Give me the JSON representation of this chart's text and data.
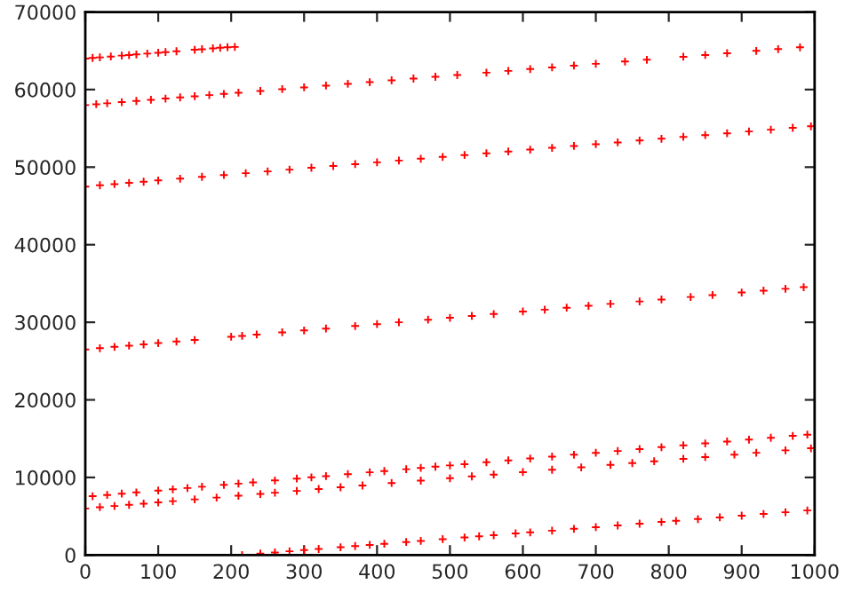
{
  "chart_data": {
    "type": "scatter",
    "marker": "cross",
    "grid": false,
    "xlim": [
      0,
      1000
    ],
    "xticks": [
      0,
      100,
      200,
      300,
      400,
      500,
      600,
      700,
      800,
      900,
      1000
    ],
    "ylim": [
      0,
      70000
    ],
    "yticks": [
      0,
      10000,
      20000,
      30000,
      40000,
      50000,
      60000,
      70000
    ],
    "series": [
      {
        "color": "#ff0000",
        "x": [
          0,
          10,
          20,
          35,
          50,
          60,
          70,
          85,
          100,
          110,
          125,
          150,
          160,
          175,
          185,
          195,
          205,
          0,
          15,
          30,
          50,
          70,
          90,
          110,
          130,
          150,
          170,
          190,
          210,
          240,
          270,
          300,
          330,
          360,
          390,
          420,
          450,
          480,
          510,
          550,
          580,
          610,
          640,
          670,
          700,
          740,
          770,
          820,
          850,
          880,
          920,
          950,
          980,
          0,
          20,
          40,
          60,
          80,
          100,
          130,
          160,
          190,
          220,
          250,
          280,
          310,
          340,
          370,
          400,
          430,
          460,
          490,
          520,
          550,
          580,
          610,
          640,
          670,
          700,
          730,
          760,
          790,
          820,
          850,
          880,
          910,
          940,
          970,
          995,
          0,
          20,
          40,
          60,
          80,
          100,
          125,
          150,
          200,
          215,
          235,
          270,
          300,
          330,
          370,
          400,
          430,
          470,
          500,
          530,
          560,
          600,
          630,
          660,
          690,
          720,
          760,
          790,
          830,
          860,
          900,
          930,
          960,
          985,
          10,
          30,
          50,
          70,
          100,
          120,
          140,
          160,
          190,
          210,
          230,
          260,
          290,
          310,
          330,
          360,
          390,
          410,
          440,
          460,
          480,
          500,
          520,
          550,
          580,
          610,
          640,
          670,
          700,
          730,
          760,
          790,
          820,
          850,
          880,
          910,
          940,
          970,
          990,
          0,
          20,
          40,
          60,
          80,
          100,
          120,
          150,
          180,
          210,
          240,
          260,
          290,
          320,
          350,
          380,
          420,
          460,
          500,
          530,
          560,
          600,
          640,
          680,
          720,
          750,
          780,
          820,
          850,
          890,
          920,
          960,
          995,
          215,
          240,
          260,
          280,
          300,
          320,
          350,
          370,
          390,
          410,
          440,
          460,
          490,
          520,
          540,
          560,
          590,
          610,
          640,
          670,
          700,
          730,
          760,
          790,
          810,
          840,
          870,
          900,
          930,
          960,
          990
        ],
        "values": [
          64000,
          64080,
          64150,
          64260,
          64380,
          64450,
          64530,
          64640,
          64750,
          64830,
          64940,
          65130,
          65200,
          65310,
          65390,
          65460,
          65500,
          58000,
          58110,
          58230,
          58380,
          58530,
          58680,
          58840,
          58990,
          59140,
          59290,
          59440,
          59600,
          59820,
          60050,
          60280,
          60510,
          60740,
          60960,
          61190,
          61420,
          61650,
          61880,
          62180,
          62410,
          62640,
          62860,
          63090,
          63320,
          63620,
          63850,
          64230,
          64460,
          64690,
          64990,
          65220,
          65450,
          47500,
          47660,
          47810,
          47970,
          48120,
          48280,
          48510,
          48750,
          48980,
          49220,
          49450,
          49680,
          49920,
          50150,
          50390,
          50620,
          50850,
          51090,
          51320,
          51560,
          51790,
          52020,
          52260,
          52490,
          52730,
          52960,
          53190,
          53430,
          53660,
          53900,
          54130,
          54360,
          54600,
          54830,
          55070,
          55260,
          26500,
          26660,
          26830,
          26990,
          27150,
          27320,
          27520,
          27720,
          28130,
          28250,
          28420,
          28700,
          28950,
          29190,
          29520,
          29760,
          30000,
          30330,
          30580,
          30820,
          31060,
          31390,
          31630,
          31880,
          32120,
          32370,
          32690,
          32940,
          33260,
          33510,
          33840,
          34080,
          34320,
          34530,
          7580,
          7740,
          7910,
          8070,
          8310,
          8470,
          8630,
          8800,
          9040,
          9200,
          9360,
          9610,
          9850,
          10010,
          10170,
          10420,
          10660,
          10820,
          11060,
          11230,
          11390,
          11550,
          11710,
          11960,
          12200,
          12440,
          12680,
          12930,
          13170,
          13410,
          13660,
          13900,
          14140,
          14390,
          14630,
          14870,
          15110,
          15360,
          15520,
          6000,
          6160,
          6310,
          6470,
          6620,
          6780,
          6940,
          7170,
          7400,
          7640,
          7870,
          8030,
          8260,
          8500,
          8730,
          8960,
          9280,
          9590,
          9900,
          10130,
          10370,
          10680,
          10990,
          11300,
          11620,
          11850,
          12080,
          12400,
          12630,
          12940,
          13180,
          13490,
          13760,
          0,
          190,
          330,
          480,
          630,
          780,
          1000,
          1150,
          1300,
          1440,
          1670,
          1810,
          2040,
          2260,
          2410,
          2550,
          2780,
          2920,
          3140,
          3370,
          3590,
          3810,
          4040,
          4260,
          4400,
          4630,
          4850,
          5070,
          5290,
          5510,
          5740
        ]
      }
    ]
  }
}
